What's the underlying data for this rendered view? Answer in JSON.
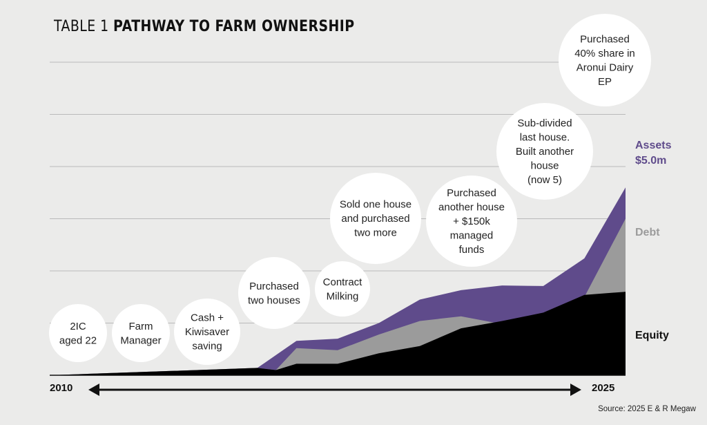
{
  "title": {
    "prefix": "TABLE 1",
    "main": "PATHWAY TO FARM OWNERSHIP"
  },
  "source": "Source: 2025 E & R Megaw",
  "colors": {
    "background": "#ebebea",
    "assets": "#5f4b8b",
    "debt": "#9b9b9b",
    "equity": "#000000",
    "assets_label": "#5f4b8b",
    "debt_label": "#9b9b9b",
    "equity_label": "#111111"
  },
  "chart_data": {
    "type": "area",
    "xlabel": "",
    "ylabel": "",
    "x_axis": {
      "start": "2010",
      "end": "2025"
    },
    "grid": true,
    "series": [
      {
        "name": "Assets",
        "label_lines": [
          "Assets",
          "$5.0m"
        ],
        "values": [
          [
            0,
            0
          ],
          [
            10.1,
            0.14
          ],
          [
            12.0,
            0.66
          ],
          [
            14.0,
            0.7
          ],
          [
            16.0,
            1.0
          ],
          [
            18.0,
            1.45
          ],
          [
            20.0,
            1.63
          ],
          [
            22.0,
            1.72
          ],
          [
            24.0,
            1.71
          ],
          [
            26.0,
            2.24
          ],
          [
            28.0,
            3.6
          ]
        ]
      },
      {
        "name": "Debt",
        "label_lines": [
          "Debt"
        ],
        "values": [
          [
            0,
            0
          ],
          [
            10.1,
            0.14
          ],
          [
            11.0,
            0.1
          ],
          [
            12.0,
            0.52
          ],
          [
            14.0,
            0.48
          ],
          [
            16.0,
            0.78
          ],
          [
            18.0,
            1.04
          ],
          [
            20.0,
            1.13
          ],
          [
            22.0,
            0.98
          ],
          [
            23.5,
            0.84
          ],
          [
            26.0,
            1.5
          ],
          [
            28.0,
            3.0
          ]
        ]
      },
      {
        "name": "Equity",
        "label_lines": [
          "Equity"
        ],
        "values": [
          [
            0,
            0
          ],
          [
            10.1,
            0.14
          ],
          [
            11.0,
            0.1
          ],
          [
            12.0,
            0.22
          ],
          [
            14.0,
            0.22
          ],
          [
            16.0,
            0.42
          ],
          [
            18.0,
            0.56
          ],
          [
            20.0,
            0.9
          ],
          [
            22.0,
            1.04
          ],
          [
            24.0,
            1.2
          ],
          [
            26.0,
            1.54
          ],
          [
            28.0,
            1.6
          ]
        ]
      }
    ],
    "milestones": [
      {
        "label": [
          "2IC",
          "aged 22"
        ]
      },
      {
        "label": [
          "Farm",
          "Manager"
        ]
      },
      {
        "label": [
          "Cash +",
          "Kiwisaver",
          "saving"
        ]
      },
      {
        "label": [
          "Purchased",
          "two houses"
        ]
      },
      {
        "label": [
          "Contract",
          "Milking"
        ]
      },
      {
        "label": [
          "Sold one house",
          "and purchased",
          "two more"
        ]
      },
      {
        "label": [
          "Purchased",
          "another house",
          "+ $150k",
          "managed",
          "funds"
        ]
      },
      {
        "label": [
          "Sub-divided",
          "last house.",
          "Built another",
          "house",
          "(now 5)"
        ]
      },
      {
        "label": [
          "Purchased",
          "40% share in",
          "Aronui Dairy",
          "EP"
        ]
      }
    ]
  }
}
